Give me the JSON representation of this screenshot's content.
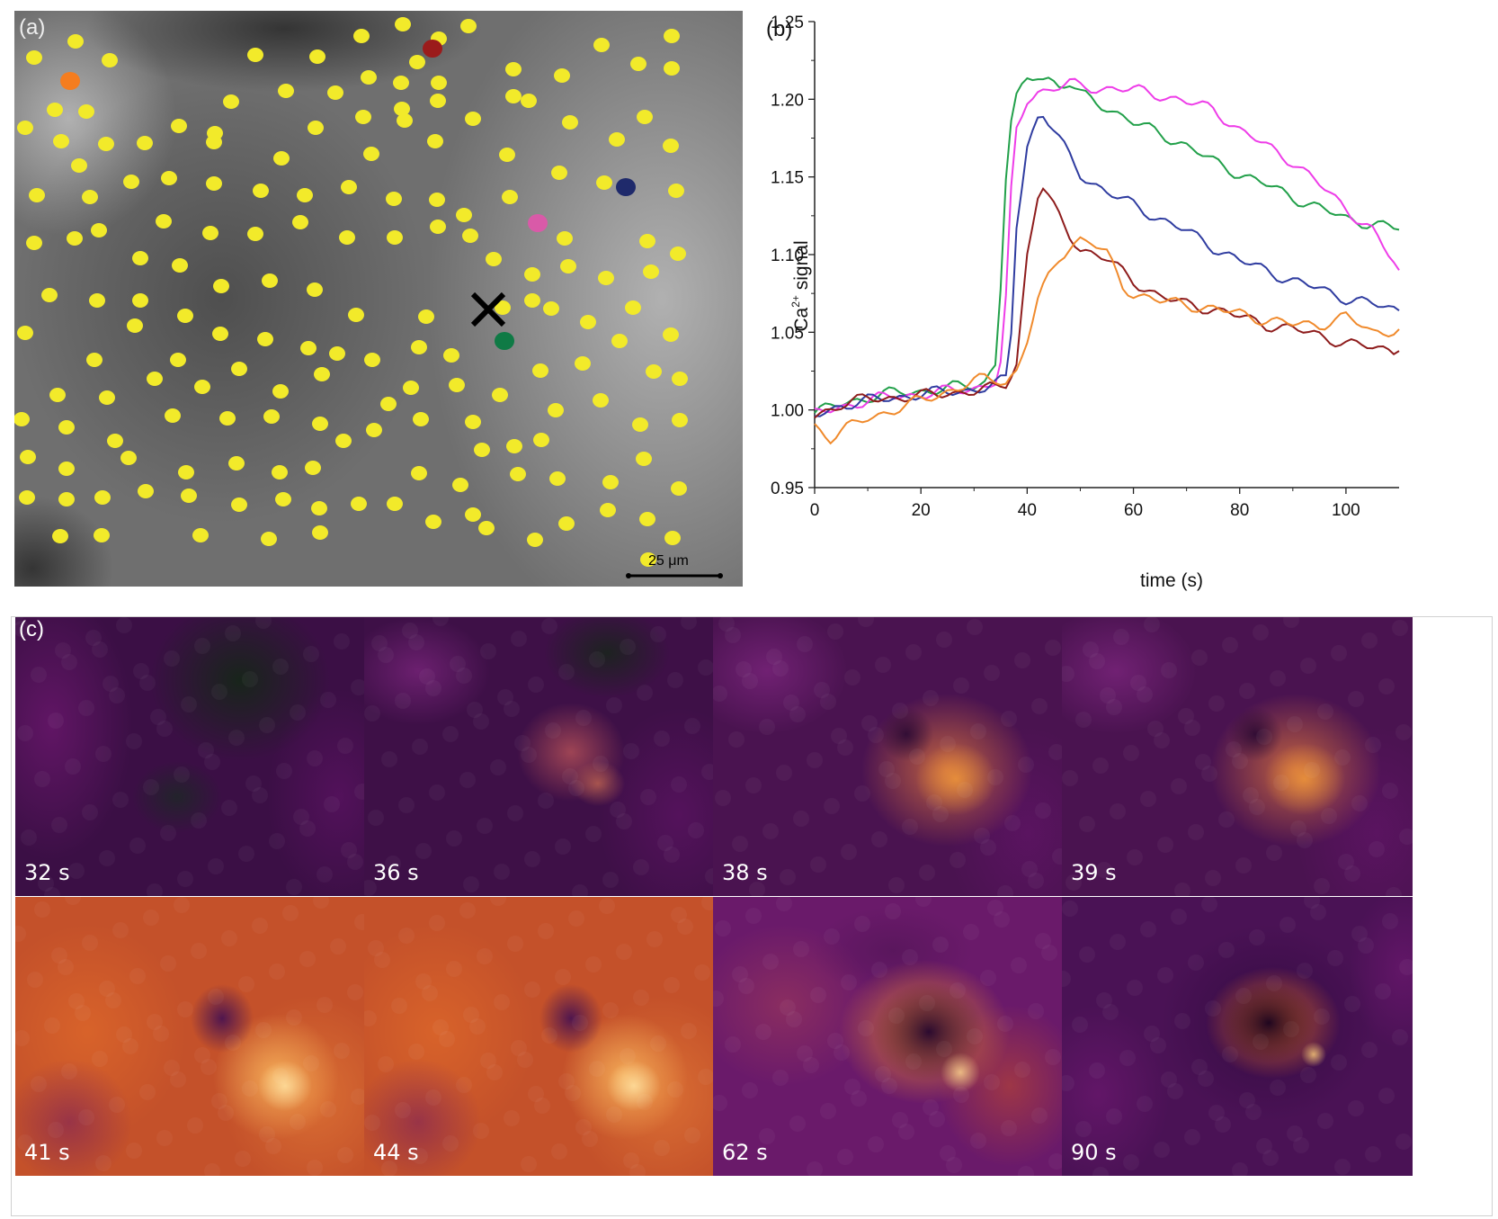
{
  "panel_a": {
    "label": "(a)",
    "scale_bar": "25 μm",
    "colors": {
      "roi_default": "#f2ea2a",
      "roi_orange": "#f57d1f",
      "roi_red": "#9b1b1b",
      "roi_navy": "#1f2a6b",
      "roi_pink": "#d95aa8",
      "roi_green": "#0f7a45",
      "marker": "#000000"
    },
    "stimulation_marker_icon": "x-mark-icon"
  },
  "chart_data": {
    "type": "line",
    "panel_label": "(b)",
    "xlabel": "time (s)",
    "ylabel": "Ca²⁺ signal",
    "ylabel_base": "Ca",
    "ylabel_sup": "2+",
    "ylabel_rest": " signal",
    "xlim": [
      0,
      110
    ],
    "ylim": [
      0.95,
      1.25
    ],
    "xticks": [
      0,
      20,
      40,
      60,
      80,
      100
    ],
    "yticks": [
      0.95,
      1.0,
      1.05,
      1.1,
      1.15,
      1.2,
      1.25
    ],
    "ytick_labels": [
      "0.95",
      "1.00",
      "1.05",
      "1.10",
      "1.15",
      "1.20",
      "1.25"
    ],
    "xtick_labels": [
      "0",
      "20",
      "40",
      "60",
      "80",
      "100"
    ],
    "series": [
      {
        "name": "green",
        "color": "#22a04a",
        "x": [
          0,
          5,
          10,
          15,
          20,
          25,
          30,
          32,
          34,
          35,
          36,
          37,
          38,
          40,
          42,
          44,
          46,
          48,
          50,
          55,
          60,
          65,
          70,
          75,
          80,
          85,
          90,
          95,
          100,
          105,
          110
        ],
        "y": [
          0.998,
          1.004,
          1.008,
          1.011,
          1.012,
          1.014,
          1.016,
          1.018,
          1.03,
          1.08,
          1.15,
          1.185,
          1.2,
          1.212,
          1.216,
          1.214,
          1.208,
          1.21,
          1.203,
          1.195,
          1.185,
          1.178,
          1.17,
          1.16,
          1.152,
          1.145,
          1.137,
          1.13,
          1.123,
          1.12,
          1.116
        ]
      },
      {
        "name": "magenta",
        "color": "#ee3de8",
        "x": [
          0,
          5,
          10,
          15,
          20,
          25,
          30,
          32,
          34,
          35,
          36,
          37,
          38,
          40,
          42,
          44,
          46,
          48,
          50,
          55,
          60,
          65,
          70,
          75,
          80,
          85,
          90,
          95,
          100,
          105,
          108,
          110
        ],
        "y": [
          0.997,
          1.002,
          1.006,
          1.009,
          1.01,
          1.012,
          1.014,
          1.016,
          1.018,
          1.03,
          1.07,
          1.14,
          1.18,
          1.2,
          1.205,
          1.206,
          1.208,
          1.21,
          1.208,
          1.207,
          1.206,
          1.203,
          1.198,
          1.194,
          1.18,
          1.17,
          1.16,
          1.145,
          1.13,
          1.115,
          1.1,
          1.09
        ]
      },
      {
        "name": "navy",
        "color": "#2f3ca0",
        "x": [
          0,
          5,
          10,
          15,
          20,
          25,
          30,
          32,
          34,
          36,
          37,
          38,
          40,
          42,
          43,
          45,
          48,
          50,
          55,
          60,
          65,
          70,
          75,
          80,
          85,
          90,
          95,
          100,
          105,
          110
        ],
        "y": [
          0.996,
          1.003,
          1.006,
          1.008,
          1.01,
          1.012,
          1.013,
          1.014,
          1.016,
          1.02,
          1.05,
          1.12,
          1.17,
          1.188,
          1.19,
          1.18,
          1.163,
          1.152,
          1.14,
          1.132,
          1.123,
          1.115,
          1.105,
          1.096,
          1.09,
          1.083,
          1.078,
          1.072,
          1.068,
          1.064
        ]
      },
      {
        "name": "dark red",
        "color": "#8e1c1c",
        "x": [
          0,
          5,
          10,
          15,
          20,
          25,
          30,
          32,
          34,
          36,
          38,
          40,
          42,
          43,
          45,
          48,
          50,
          55,
          60,
          65,
          70,
          75,
          80,
          85,
          90,
          95,
          100,
          105,
          110
        ],
        "y": [
          0.996,
          1.004,
          1.007,
          1.008,
          1.009,
          1.011,
          1.012,
          1.013,
          1.014,
          1.017,
          1.03,
          1.1,
          1.138,
          1.143,
          1.13,
          1.113,
          1.104,
          1.097,
          1.083,
          1.073,
          1.068,
          1.065,
          1.06,
          1.055,
          1.052,
          1.048,
          1.043,
          1.04,
          1.038
        ]
      },
      {
        "name": "orange",
        "color": "#f08a2c",
        "x": [
          0,
          3,
          5,
          10,
          15,
          20,
          25,
          30,
          32,
          34,
          36,
          38,
          40,
          42,
          44,
          46,
          48,
          50,
          52,
          55,
          58,
          60,
          65,
          70,
          75,
          80,
          85,
          90,
          95,
          100,
          105,
          110
        ],
        "y": [
          0.99,
          0.982,
          0.986,
          0.995,
          1.0,
          1.006,
          1.012,
          1.018,
          1.02,
          1.02,
          1.018,
          1.025,
          1.045,
          1.07,
          1.085,
          1.098,
          1.105,
          1.11,
          1.108,
          1.1,
          1.08,
          1.075,
          1.07,
          1.068,
          1.065,
          1.062,
          1.058,
          1.055,
          1.055,
          1.06,
          1.05,
          1.052
        ]
      }
    ]
  },
  "panel_c": {
    "label": "(c)",
    "frames": [
      {
        "label": "32 s",
        "state": "baseline"
      },
      {
        "label": "36 s",
        "state": "onset"
      },
      {
        "label": "38 s",
        "state": "spreading"
      },
      {
        "label": "39 s",
        "state": "spreading"
      },
      {
        "label": "41 s",
        "state": "peak"
      },
      {
        "label": "44 s",
        "state": "peak"
      },
      {
        "label": "62 s",
        "state": "decay"
      },
      {
        "label": "90 s",
        "state": "late"
      }
    ]
  }
}
